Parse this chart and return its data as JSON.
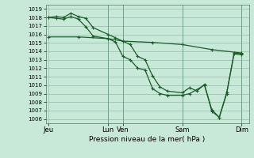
{
  "background_color": "#c8e8d8",
  "grid_color": "#a0c8b8",
  "line_color": "#1a5c28",
  "title": "Pression niveau de la mer( hPa )",
  "ylim": [
    1005.5,
    1019.5
  ],
  "yticks": [
    1006,
    1007,
    1008,
    1009,
    1010,
    1011,
    1012,
    1013,
    1014,
    1015,
    1016,
    1017,
    1018,
    1019
  ],
  "xtick_labels": [
    "Jeu",
    "Lun",
    "Ven",
    "Sam",
    "Dim"
  ],
  "xtick_positions": [
    0,
    40,
    50,
    90,
    130
  ],
  "xlim": [
    -2,
    135
  ],
  "vlines": [
    40,
    50,
    90,
    130
  ],
  "line1_x": [
    0,
    5,
    10,
    15,
    20,
    25,
    30,
    40,
    45,
    50,
    55,
    60,
    65,
    70,
    75,
    80,
    90,
    95,
    100,
    105,
    110,
    115,
    120,
    125,
    130
  ],
  "line1_y": [
    1018.0,
    1018.1,
    1018.0,
    1018.5,
    1018.1,
    1017.9,
    1016.8,
    1016.0,
    1015.6,
    1015.2,
    1014.8,
    1013.4,
    1013.0,
    1011.1,
    1009.8,
    1009.3,
    1009.1,
    1009.7,
    1009.3,
    1010.1,
    1006.9,
    1006.2,
    1009.0,
    1013.8,
    1013.7
  ],
  "line2_x": [
    0,
    5,
    10,
    15,
    20,
    25,
    30,
    40,
    45,
    50,
    55,
    60,
    65,
    70,
    75,
    80,
    90,
    95,
    105,
    110,
    115,
    120,
    125,
    130
  ],
  "line2_y": [
    1018.0,
    1017.9,
    1017.8,
    1018.1,
    1017.8,
    1016.9,
    1015.8,
    1015.5,
    1015.1,
    1013.4,
    1013.0,
    1012.0,
    1011.8,
    1009.6,
    1009.0,
    1008.8,
    1008.8,
    1009.0,
    1010.0,
    1007.1,
    1006.2,
    1009.1,
    1013.7,
    1013.6
  ],
  "line3_x": [
    0,
    20,
    40,
    50,
    70,
    90,
    110,
    130
  ],
  "line3_y": [
    1015.7,
    1015.7,
    1015.5,
    1015.2,
    1015.05,
    1014.8,
    1014.2,
    1013.8
  ],
  "title_fontsize": 6.5,
  "ytick_fontsize": 5,
  "xtick_fontsize": 6
}
